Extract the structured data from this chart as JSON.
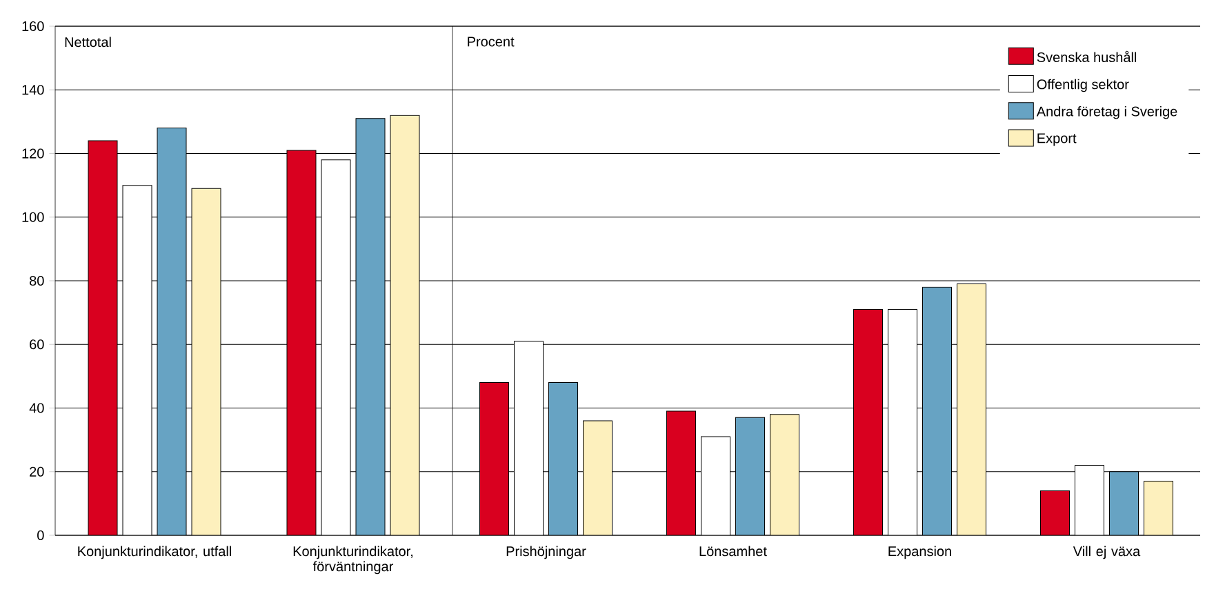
{
  "chart_data": [
    {
      "type": "bar",
      "title": "Nettotal",
      "categories": [
        "Konjunkturindikator, utfall",
        "Konjunkturindikator, förväntningar"
      ],
      "ylim": [
        0,
        160
      ],
      "yticks": [
        0,
        20,
        40,
        60,
        80,
        100,
        120,
        140,
        160
      ],
      "grid": "y",
      "series": [
        {
          "color": "#d9001f",
          "values": [
            124,
            121
          ]
        },
        {
          "color": "#ffffff",
          "values": [
            110,
            118
          ]
        },
        {
          "color": "#67a3c3",
          "values": [
            128,
            131
          ]
        },
        {
          "color": "#fdf0bd",
          "values": [
            109,
            132
          ]
        }
      ]
    },
    {
      "type": "bar",
      "title": "Procent",
      "categories": [
        "Prishöjningar",
        "Lönsamhet",
        "Expansion",
        "Vill ej växa"
      ],
      "ylim": [
        0,
        160
      ],
      "yticks": [
        0,
        20,
        40,
        60,
        80,
        100,
        120,
        140,
        160
      ],
      "grid": "y",
      "tick_labels": "x",
      "legend": "top right",
      "series": [
        {
          "name": "Svenska hushåll",
          "color": "#d9001f",
          "values": [
            48,
            39,
            71,
            14
          ]
        },
        {
          "name": "Offentlig sektor",
          "color": "#ffffff",
          "values": [
            61,
            31,
            71,
            22
          ]
        },
        {
          "name": "Andra företag i Sverige",
          "color": "#67a3c3",
          "values": [
            48,
            37,
            78,
            20
          ]
        },
        {
          "name": "Export",
          "color": "#fdf0bd",
          "values": [
            36,
            38,
            79,
            17
          ]
        }
      ]
    }
  ]
}
